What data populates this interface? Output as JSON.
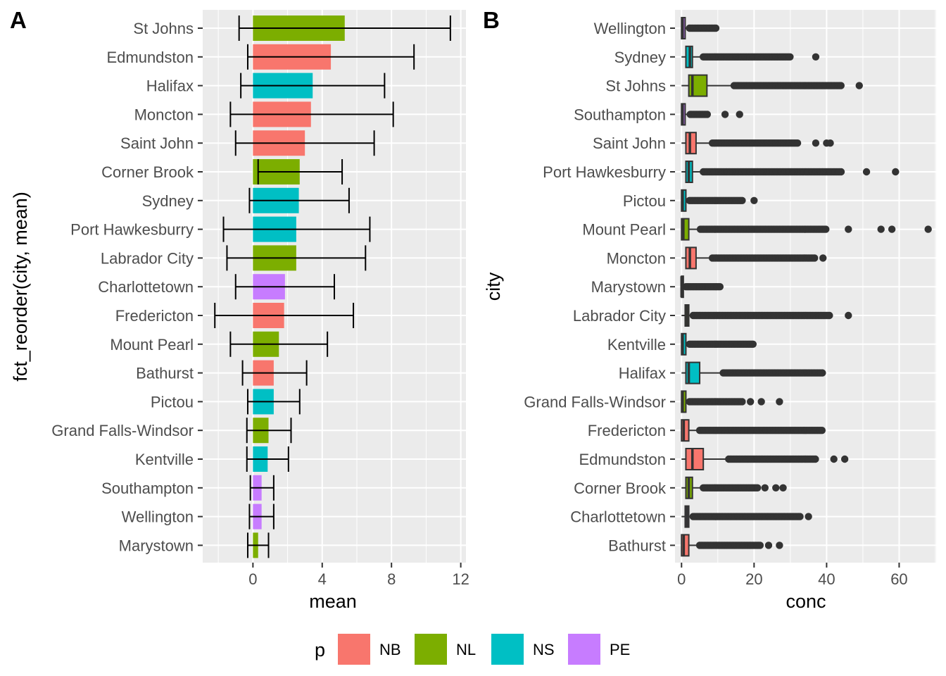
{
  "legend": {
    "title": "p",
    "entries": [
      {
        "label": "NB",
        "color": "#F8766D"
      },
      {
        "label": "NL",
        "color": "#7CAE00"
      },
      {
        "label": "NS",
        "color": "#00BFC4"
      },
      {
        "label": "PE",
        "color": "#C77CFF"
      }
    ]
  },
  "chart_data": [
    {
      "panel": "A",
      "type": "bar",
      "orientation": "horizontal",
      "xlabel": "mean",
      "ylabel": "fct_reorder(city, mean)",
      "xlim": [
        -2.9,
        12.3
      ],
      "x_ticks": [
        0,
        4,
        8,
        12
      ],
      "grid": true,
      "categories": [
        "St Johns",
        "Edmundston",
        "Halifax",
        "Moncton",
        "Saint John",
        "Corner Brook",
        "Sydney",
        "Port Hawkesburry",
        "Labrador City",
        "Charlottetown",
        "Fredericton",
        "Mount Pearl",
        "Bathurst",
        "Pictou",
        "Grand Falls-Windsor",
        "Kentville",
        "Southampton",
        "Wellington",
        "Marystown"
      ],
      "group": [
        "NL",
        "NB",
        "NS",
        "NB",
        "NB",
        "NL",
        "NS",
        "NS",
        "NL",
        "PE",
        "NB",
        "NL",
        "NB",
        "NS",
        "NL",
        "NS",
        "PE",
        "PE",
        "NL"
      ],
      "values": [
        5.3,
        4.5,
        3.45,
        3.35,
        3.0,
        2.7,
        2.65,
        2.5,
        2.5,
        1.85,
        1.8,
        1.5,
        1.2,
        1.2,
        0.9,
        0.85,
        0.5,
        0.5,
        0.3
      ],
      "error_low": [
        -0.8,
        -0.3,
        -0.7,
        -1.3,
        -1.0,
        0.3,
        -0.2,
        -1.7,
        -1.5,
        -1.0,
        -2.2,
        -1.3,
        -0.6,
        -0.3,
        -0.35,
        -0.35,
        -0.15,
        -0.2,
        -0.3
      ],
      "error_high": [
        11.4,
        9.3,
        7.6,
        8.1,
        7.0,
        5.15,
        5.55,
        6.75,
        6.5,
        4.7,
        5.8,
        4.3,
        3.1,
        2.7,
        2.2,
        2.05,
        1.2,
        1.2,
        0.9
      ]
    },
    {
      "panel": "B",
      "type": "box",
      "orientation": "horizontal",
      "xlabel": "conc",
      "ylabel": "city",
      "xlim": [
        -1.8,
        70.2
      ],
      "x_ticks": [
        0,
        20,
        40,
        60
      ],
      "grid": true,
      "categories": [
        "Wellington",
        "Sydney",
        "St Johns",
        "Southampton",
        "Saint John",
        "Port Hawkesburry",
        "Pictou",
        "Mount Pearl",
        "Moncton",
        "Marystown",
        "Labrador City",
        "Kentville",
        "Halifax",
        "Grand Falls-Windsor",
        "Fredericton",
        "Edmundston",
        "Corner Brook",
        "Charlottetown",
        "Bathurst"
      ],
      "group": [
        "PE",
        "NS",
        "NL",
        "PE",
        "NB",
        "NS",
        "NS",
        "NL",
        "NB",
        "NL",
        "NL",
        "NS",
        "NS",
        "NL",
        "NB",
        "NB",
        "NL",
        "PE",
        "NB"
      ],
      "boxes": [
        {
          "q1": 0.0,
          "median": 0.3,
          "q3": 1.0,
          "whisker_low": 0.0,
          "whisker_high": 2.0,
          "outlier_range": [
            2.2,
            9.5
          ],
          "outliers": []
        },
        {
          "q1": 1.2,
          "median": 2.3,
          "q3": 3.0,
          "whisker_low": 0.0,
          "whisker_high": 5.8,
          "outlier_range": [
            6.0,
            30.0
          ],
          "outliers": [
            37.0
          ]
        },
        {
          "q1": 2.0,
          "median": 3.0,
          "q3": 7.0,
          "whisker_low": 0.0,
          "whisker_high": 14.0,
          "outlier_range": [
            14.5,
            44.0
          ],
          "outliers": [
            49.0
          ]
        },
        {
          "q1": 0.0,
          "median": 0.3,
          "q3": 1.0,
          "whisker_low": 0.0,
          "whisker_high": 2.2,
          "outlier_range": [
            2.4,
            7.5
          ],
          "outliers": [
            12.0,
            16.0
          ]
        },
        {
          "q1": 1.2,
          "median": 2.3,
          "q3": 4.0,
          "whisker_low": 0.0,
          "whisker_high": 8.0,
          "outlier_range": [
            8.5,
            32.0
          ],
          "outliers": [
            37.0,
            40.0,
            41.0
          ]
        },
        {
          "q1": 1.2,
          "median": 2.0,
          "q3": 3.0,
          "whisker_low": 0.0,
          "whisker_high": 5.6,
          "outlier_range": [
            6.0,
            44.0
          ],
          "outliers": [
            51.0,
            59.0
          ]
        },
        {
          "q1": 0.0,
          "median": 0.3,
          "q3": 1.2,
          "whisker_low": 0.0,
          "whisker_high": 2.0,
          "outlier_range": [
            2.2,
            17.0
          ],
          "outliers": [
            20.0
          ]
        },
        {
          "q1": 0.0,
          "median": 0.5,
          "q3": 2.0,
          "whisker_low": 0.0,
          "whisker_high": 5.0,
          "outlier_range": [
            5.2,
            40.0
          ],
          "outliers": [
            46.0,
            55.0,
            58.0,
            68.0
          ]
        },
        {
          "q1": 1.2,
          "median": 2.3,
          "q3": 4.0,
          "whisker_low": 0.0,
          "whisker_high": 8.0,
          "outlier_range": [
            8.5,
            37.0
          ],
          "outliers": [
            39.0
          ]
        },
        {
          "q1": 0.0,
          "median": 0.0,
          "q3": 0.5,
          "whisker_low": 0.0,
          "whisker_high": 1.0,
          "outlier_range": [
            1.2,
            11.0
          ],
          "outliers": []
        },
        {
          "q1": 1.0,
          "median": 1.5,
          "q3": 2.0,
          "whisker_low": 0.0,
          "whisker_high": 3.0,
          "outlier_range": [
            3.2,
            41.0
          ],
          "outliers": [
            46.0
          ]
        },
        {
          "q1": 0.0,
          "median": 0.3,
          "q3": 1.2,
          "whisker_low": 0.0,
          "whisker_high": 2.0,
          "outlier_range": [
            2.2,
            20.0
          ],
          "outliers": []
        },
        {
          "q1": 1.2,
          "median": 2.0,
          "q3": 5.0,
          "whisker_low": 0.0,
          "whisker_high": 11.0,
          "outlier_range": [
            11.5,
            39.0
          ],
          "outliers": []
        },
        {
          "q1": 0.0,
          "median": 0.3,
          "q3": 1.2,
          "whisker_low": 0.0,
          "whisker_high": 2.0,
          "outlier_range": [
            2.2,
            17.0
          ],
          "outliers": [
            19.0,
            22.0,
            27.0
          ]
        },
        {
          "q1": 0.0,
          "median": 0.6,
          "q3": 2.0,
          "whisker_low": 0.0,
          "whisker_high": 4.8,
          "outlier_range": [
            5.0,
            39.0
          ],
          "outliers": []
        },
        {
          "q1": 1.2,
          "median": 3.0,
          "q3": 6.0,
          "whisker_low": 0.0,
          "whisker_high": 12.6,
          "outlier_range": [
            13.0,
            37.0
          ],
          "outliers": [
            42.0,
            45.0
          ]
        },
        {
          "q1": 1.2,
          "median": 2.0,
          "q3": 3.0,
          "whisker_low": 0.0,
          "whisker_high": 5.8,
          "outlier_range": [
            6.0,
            21.0
          ],
          "outliers": [
            23.0,
            26.0,
            28.0
          ]
        },
        {
          "q1": 1.0,
          "median": 1.5,
          "q3": 2.0,
          "whisker_low": 0.0,
          "whisker_high": 3.0,
          "outlier_range": [
            3.2,
            33.0
          ],
          "outliers": [
            35.0
          ]
        },
        {
          "q1": 0.0,
          "median": 0.6,
          "q3": 2.0,
          "whisker_low": 0.0,
          "whisker_high": 4.8,
          "outlier_range": [
            5.0,
            22.0
          ],
          "outliers": [
            24.0,
            27.0
          ]
        }
      ]
    }
  ]
}
